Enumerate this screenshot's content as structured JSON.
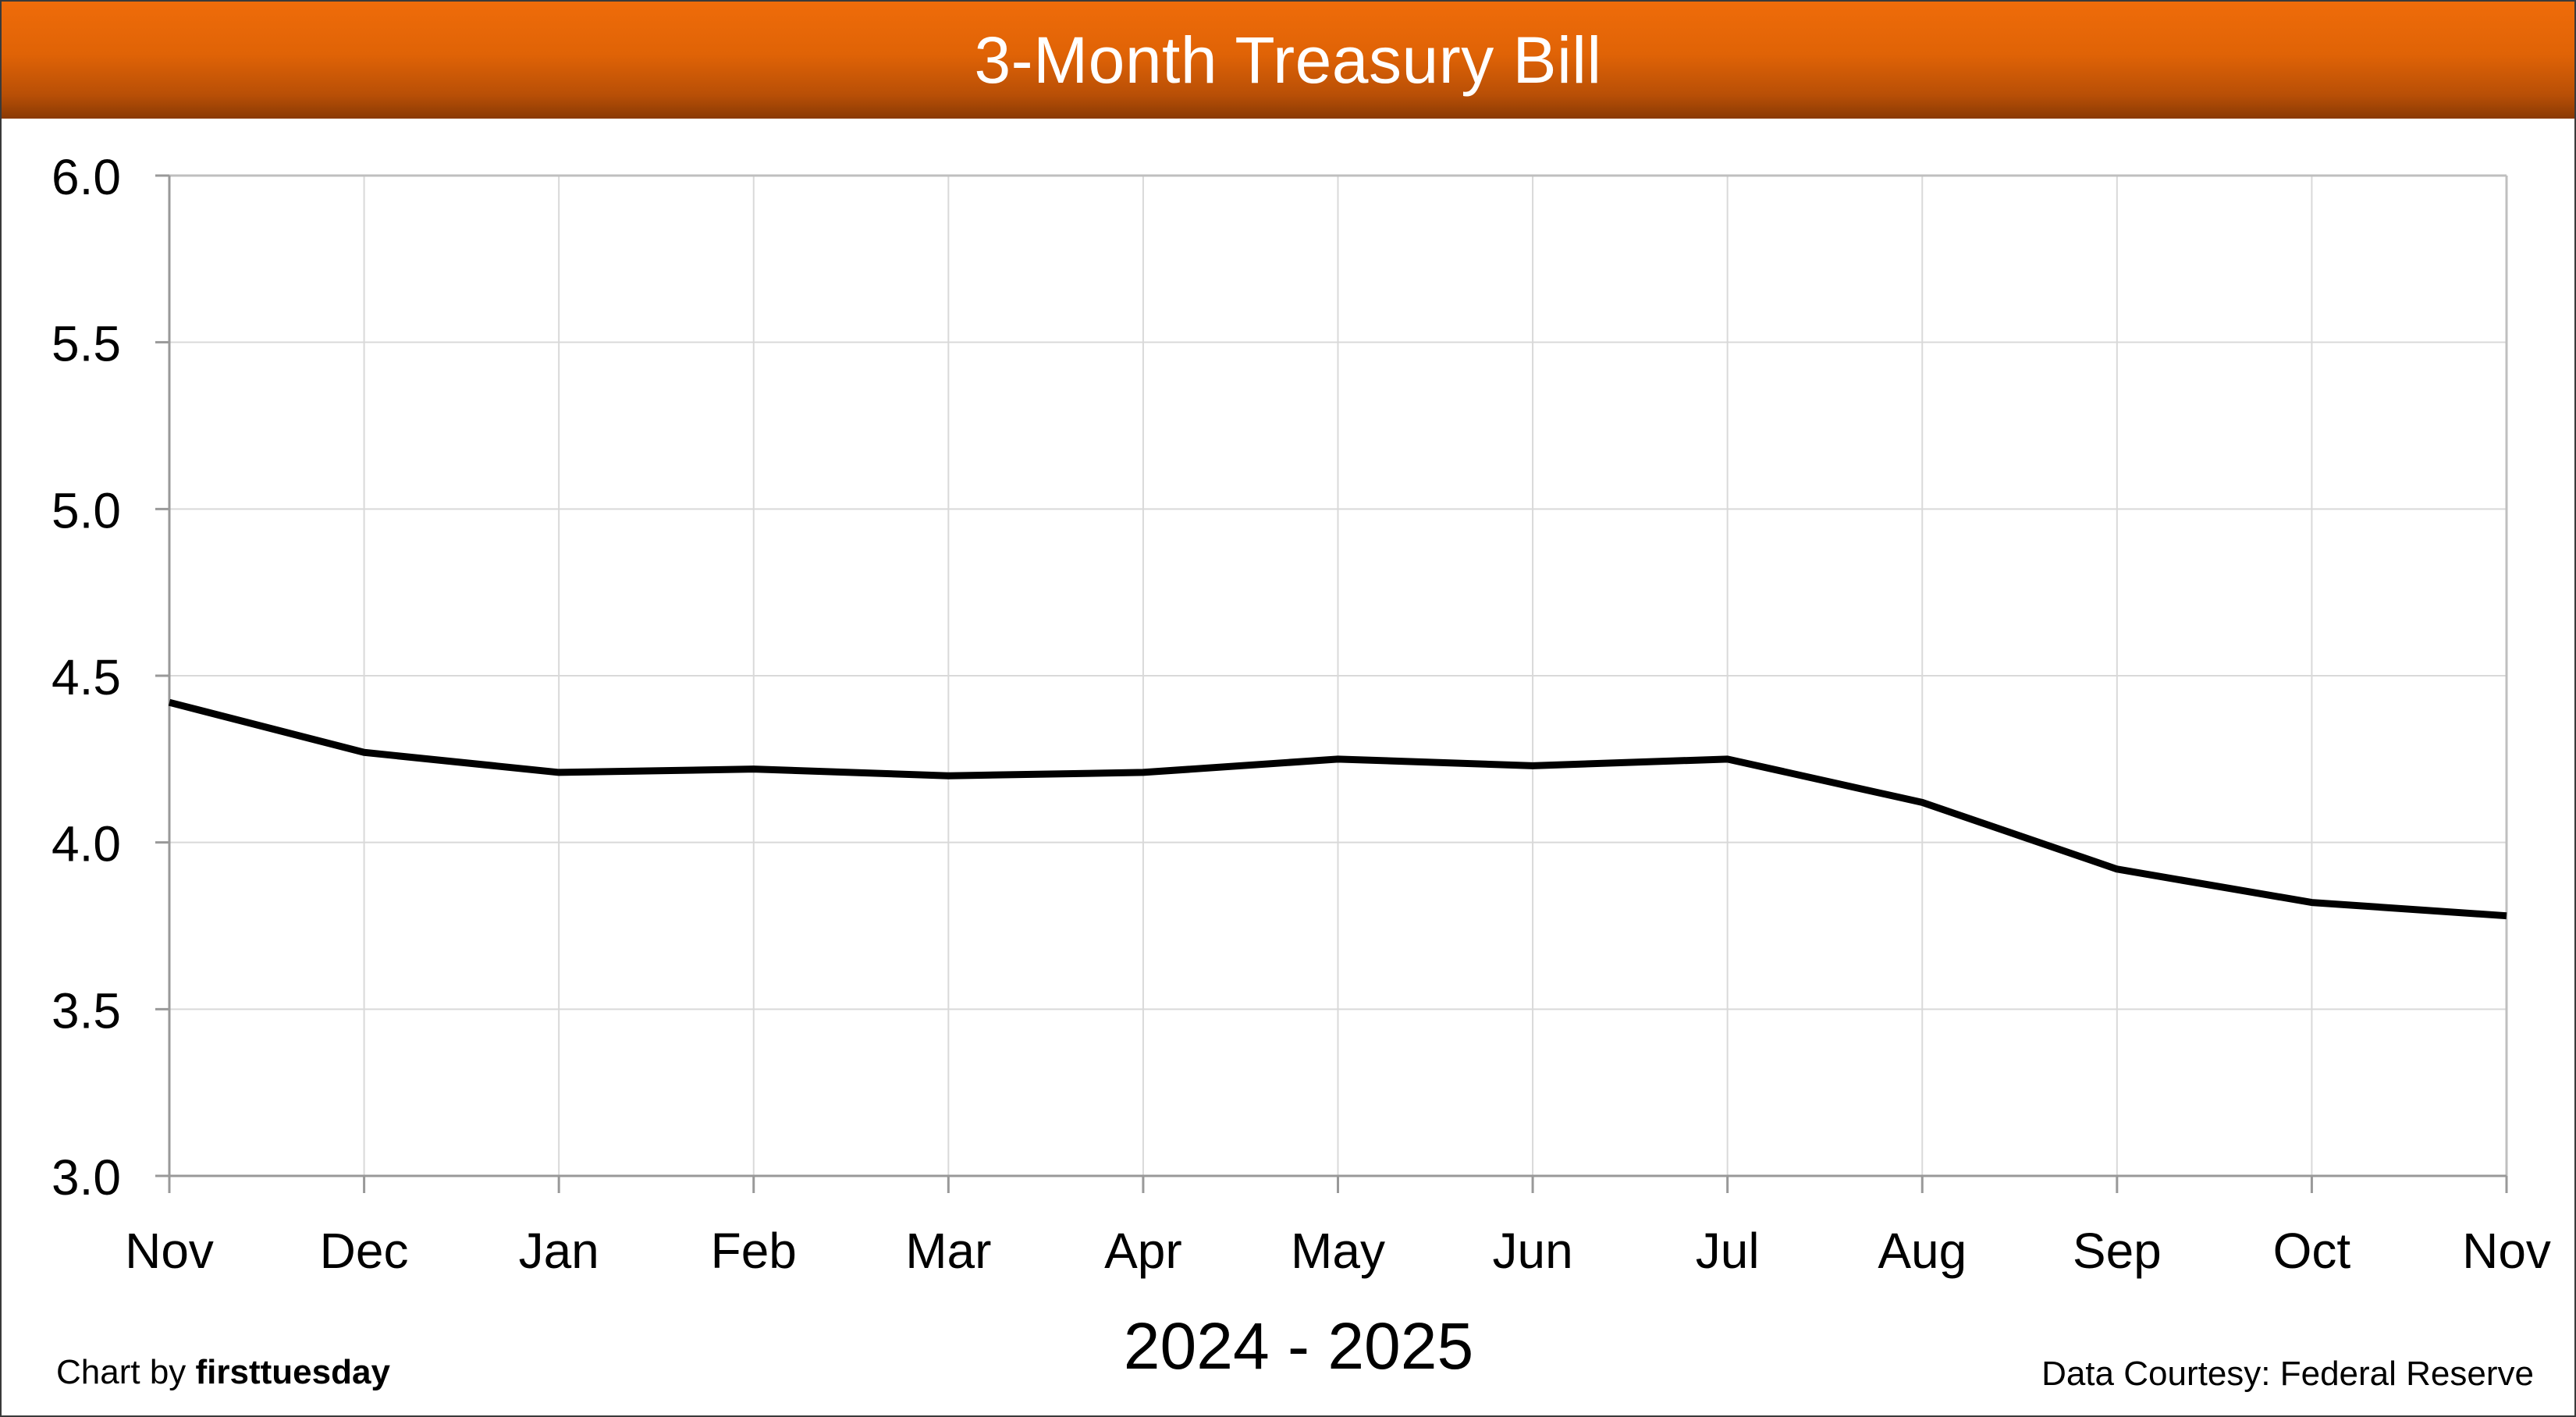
{
  "colors": {
    "title_bar": "#e06306",
    "title_text": "#ffffff",
    "line": "#000000",
    "grid": "#d9d9d9",
    "axis": "#999999"
  },
  "footer": {
    "credit_prefix": "Chart by ",
    "credit_brand": "firsttuesday",
    "source": "Data Courtesy: Federal Reserve"
  },
  "chart_data": {
    "type": "line",
    "title": "3-Month Treasury Bill",
    "xlabel": "2024 - 2025",
    "ylabel": "",
    "categories": [
      "Nov",
      "Dec",
      "Jan",
      "Feb",
      "Mar",
      "Apr",
      "May",
      "Jun",
      "Jul",
      "Aug",
      "Sep",
      "Oct",
      "Nov"
    ],
    "series": [
      {
        "values": [
          4.42,
          4.27,
          4.21,
          4.22,
          4.2,
          4.21,
          4.25,
          4.23,
          4.25,
          4.12,
          3.92,
          3.82,
          3.78
        ]
      }
    ],
    "ylim": [
      3.0,
      6.0
    ],
    "yticks": [
      "3.0",
      "3.5",
      "4.0",
      "4.5",
      "5.0",
      "5.5",
      "6.0"
    ],
    "grid": true,
    "legend": "none"
  }
}
